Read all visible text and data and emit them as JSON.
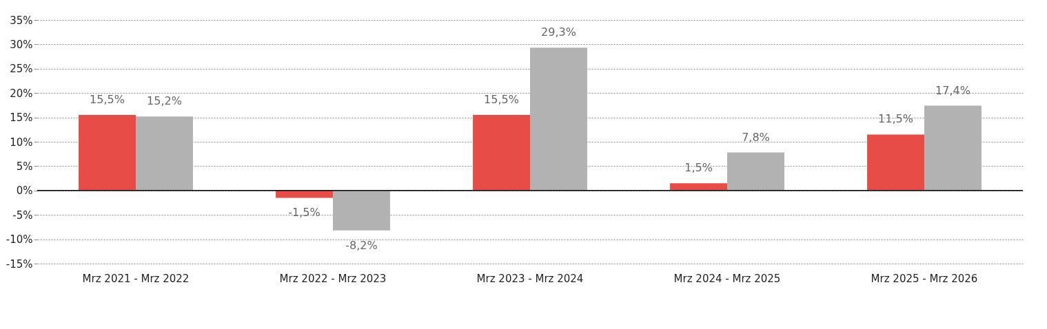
{
  "chart_data": {
    "type": "bar",
    "categories": [
      "Mrz 2021 - Mrz 2022",
      "Mrz 2022 - Mrz 2023",
      "Mrz 2023 - Mrz 2024",
      "Mrz 2024 - Mrz 2025",
      "Mrz 2025 - Mrz 2026"
    ],
    "series": [
      {
        "color": "#e84c47",
        "values": [
          15.5,
          -1.5,
          15.5,
          1.5,
          11.5
        ],
        "value_labels": [
          "15,5%",
          "-1,5%",
          "15,5%",
          "1,5%",
          "11,5%"
        ]
      },
      {
        "color": "#b2b2b2",
        "values": [
          15.2,
          -8.2,
          29.3,
          7.8,
          17.4
        ],
        "value_labels": [
          "15,2%",
          "-8,2%",
          "29,3%",
          "7,8%",
          "17,4%"
        ]
      }
    ],
    "ylim": [
      -15,
      35
    ],
    "yticks": [
      {
        "value": -15,
        "label": "-15%"
      },
      {
        "value": -10,
        "label": "-10%"
      },
      {
        "value": -5,
        "label": "-5%"
      },
      {
        "value": 0,
        "label": "0%"
      },
      {
        "value": 5,
        "label": "5%"
      },
      {
        "value": 10,
        "label": "10%"
      },
      {
        "value": 15,
        "label": "15%"
      },
      {
        "value": 20,
        "label": "20%"
      },
      {
        "value": 25,
        "label": "25%"
      },
      {
        "value": 30,
        "label": "30%"
      },
      {
        "value": 35,
        "label": "35%"
      }
    ],
    "grid": "y",
    "legend": false
  }
}
